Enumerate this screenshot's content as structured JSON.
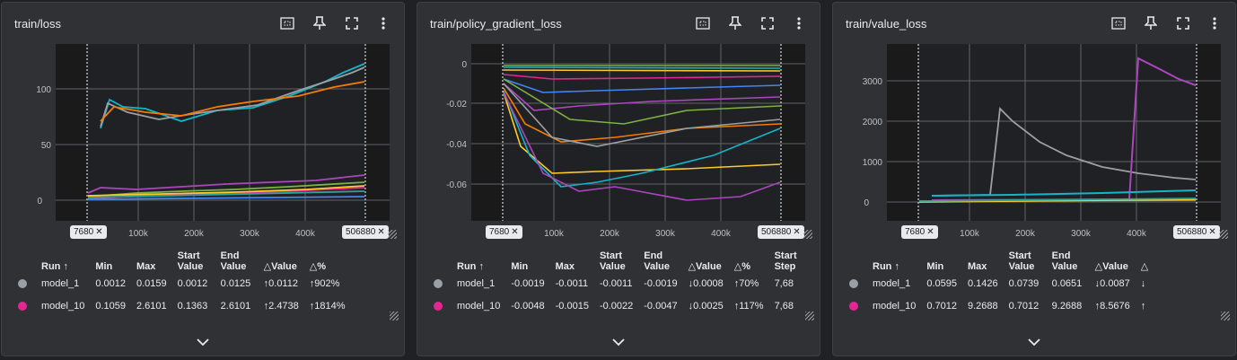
{
  "cards": [
    {
      "title": "train/loss",
      "y_ticks": [
        "0",
        "50",
        "100"
      ],
      "x_ticks": [
        "100k",
        "200k",
        "300k",
        "400k"
      ],
      "range_start": "7680",
      "range_end": "506880",
      "table": {
        "headers": [
          "Run ↑",
          "Min",
          "Max",
          "Start Value",
          "End Value",
          "△Value",
          "△%"
        ],
        "rows": [
          {
            "run": "model_1",
            "color": "#9aa0a6",
            "cells": [
              "0.0012",
              "0.0159",
              "0.0012",
              "0.0125",
              "↑0.0112",
              "↑902%"
            ]
          },
          {
            "run": "model_10",
            "color": "#e52592",
            "cells": [
              "0.1059",
              "2.6101",
              "0.1363",
              "2.6101",
              "↑2.4738",
              "↑1814%"
            ]
          }
        ]
      }
    },
    {
      "title": "train/policy_gradient_loss",
      "y_ticks": [
        "0",
        "-0.02",
        "-0.04",
        "-0.06"
      ],
      "x_ticks": [
        "100k",
        "200k",
        "300k",
        "400k"
      ],
      "range_start": "7680",
      "range_end": "506880",
      "table": {
        "headers": [
          "Run ↑",
          "Min",
          "Max",
          "Start Value",
          "End Value",
          "△Value",
          "△%",
          "Start Step"
        ],
        "rows": [
          {
            "run": "model_1",
            "color": "#9aa0a6",
            "cells": [
              "-0.0019",
              "-0.0011",
              "-0.0011",
              "-0.0019",
              "↓0.0008",
              "↑70%",
              "7,68"
            ]
          },
          {
            "run": "model_10",
            "color": "#e52592",
            "cells": [
              "-0.0048",
              "-0.0015",
              "-0.0022",
              "-0.0047",
              "↓0.0025",
              "↑117%",
              "7,68"
            ]
          }
        ]
      }
    },
    {
      "title": "train/value_loss",
      "y_ticks": [
        "0",
        "1000",
        "2000",
        "3000"
      ],
      "x_ticks": [
        "100k",
        "200k",
        "300k",
        "400k"
      ],
      "range_start": "7680",
      "range_end": "506880",
      "table": {
        "headers": [
          "Run ↑",
          "Min",
          "Max",
          "Start Value",
          "End Value",
          "△Value",
          "△"
        ],
        "rows": [
          {
            "run": "model_1",
            "color": "#9aa0a6",
            "cells": [
              "0.0595",
              "0.1426",
              "0.0739",
              "0.0651",
              "↓0.0087",
              "↓"
            ]
          },
          {
            "run": "model_10",
            "color": "#e52592",
            "cells": [
              "0.7012",
              "9.2688",
              "0.7012",
              "9.2688",
              "↑8.5676",
              "↑"
            ]
          }
        ]
      }
    }
  ],
  "icons": {
    "fit": "fit-domain-icon",
    "pin": "pin-icon",
    "fullscreen": "fullscreen-icon",
    "menu": "more-vert-icon",
    "expand": "chevron-down-icon"
  }
}
